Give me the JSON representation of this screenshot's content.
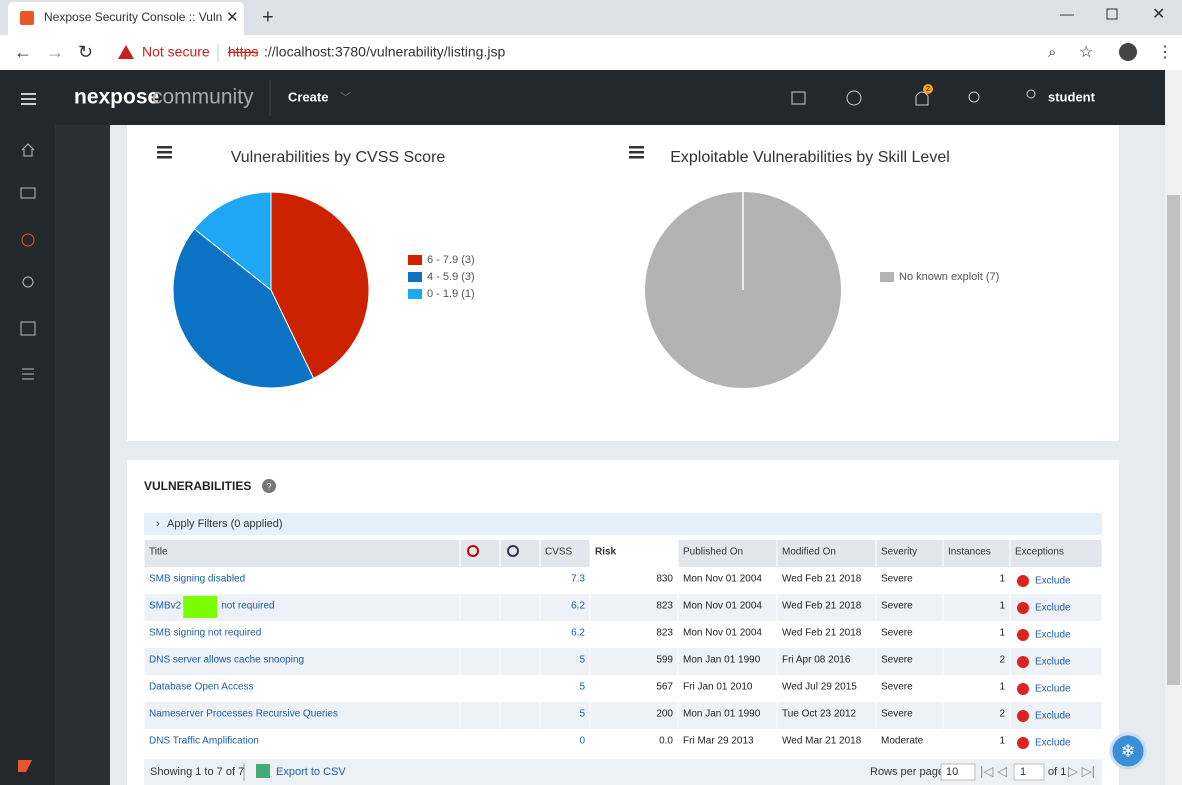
{
  "browser": {
    "tab_title": "Nexpose Security Console :: Vuln",
    "not_secure": "Not secure",
    "url_scheme": "https",
    "url_rest": "://localhost:3780/vulnerability/listing.jsp"
  },
  "header": {
    "logo_a": "nexpose",
    "logo_b": "community",
    "create": "Create",
    "notifications": "2",
    "user": "student"
  },
  "chart_data": [
    {
      "type": "pie",
      "title": "Vulnerabilities by CVSS Score",
      "categories": [
        "6 - 7.9 (3)",
        "4 - 5.9 (3)",
        "0 - 1.9 (1)"
      ],
      "values": [
        3,
        3,
        1
      ],
      "colors": [
        "#cc2200",
        "#0b72c4",
        "#1ea7f5"
      ]
    },
    {
      "type": "pie",
      "title": "Exploitable Vulnerabilities by Skill Level",
      "categories": [
        "No known exploit (7)"
      ],
      "values": [
        7
      ],
      "colors": [
        "#b3b3b3"
      ]
    }
  ],
  "vulnerabilities": {
    "title": "VULNERABILITIES",
    "filters": "Apply Filters (0 applied)",
    "columns": {
      "title": "Title",
      "cvss": "CVSS",
      "risk": "Risk",
      "published": "Published On",
      "modified": "Modified On",
      "severity": "Severity",
      "instances": "Instances",
      "exceptions": "Exceptions"
    },
    "rows": [
      {
        "title": "SMB signing disabled",
        "cvss": "7.3",
        "risk": "830",
        "published": "Mon Nov 01 2004",
        "modified": "Wed Feb 21 2018",
        "severity": "Severe",
        "instances": "1",
        "exceptions": "Exclude"
      },
      {
        "title": "SMBv2",
        "title_after_redaction": "not required",
        "cvss": "6.2",
        "risk": "823",
        "published": "Mon Nov 01 2004",
        "modified": "Wed Feb 21 2018",
        "severity": "Severe",
        "instances": "1",
        "exceptions": "Exclude"
      },
      {
        "title": "SMB signing not required",
        "cvss": "6.2",
        "risk": "823",
        "published": "Mon Nov 01 2004",
        "modified": "Wed Feb 21 2018",
        "severity": "Severe",
        "instances": "1",
        "exceptions": "Exclude"
      },
      {
        "title": "DNS server allows cache snooping",
        "cvss": "5",
        "risk": "599",
        "published": "Mon Jan 01 1990",
        "modified": "Fri Apr 08 2016",
        "severity": "Severe",
        "instances": "2",
        "exceptions": "Exclude"
      },
      {
        "title": "Database Open Access",
        "cvss": "5",
        "risk": "567",
        "published": "Fri Jan 01 2010",
        "modified": "Wed Jul 29 2015",
        "severity": "Severe",
        "instances": "1",
        "exceptions": "Exclude"
      },
      {
        "title": "Nameserver Processes Recursive Queries",
        "cvss": "5",
        "risk": "200",
        "published": "Mon Jan 01 1990",
        "modified": "Tue Oct 23 2012",
        "severity": "Severe",
        "instances": "2",
        "exceptions": "Exclude"
      },
      {
        "title": "DNS Traffic Amplification",
        "cvss": "0",
        "risk": "0.0",
        "published": "Fri Mar 29 2013",
        "modified": "Wed Mar 21 2018",
        "severity": "Moderate",
        "instances": "1",
        "exceptions": "Exclude"
      }
    ],
    "footer": {
      "showing": "Showing 1 to 7 of 7",
      "export": "Export to CSV",
      "rows_per_page": "Rows per page:",
      "page_size": "10",
      "page": "1",
      "of": "of 1"
    }
  }
}
